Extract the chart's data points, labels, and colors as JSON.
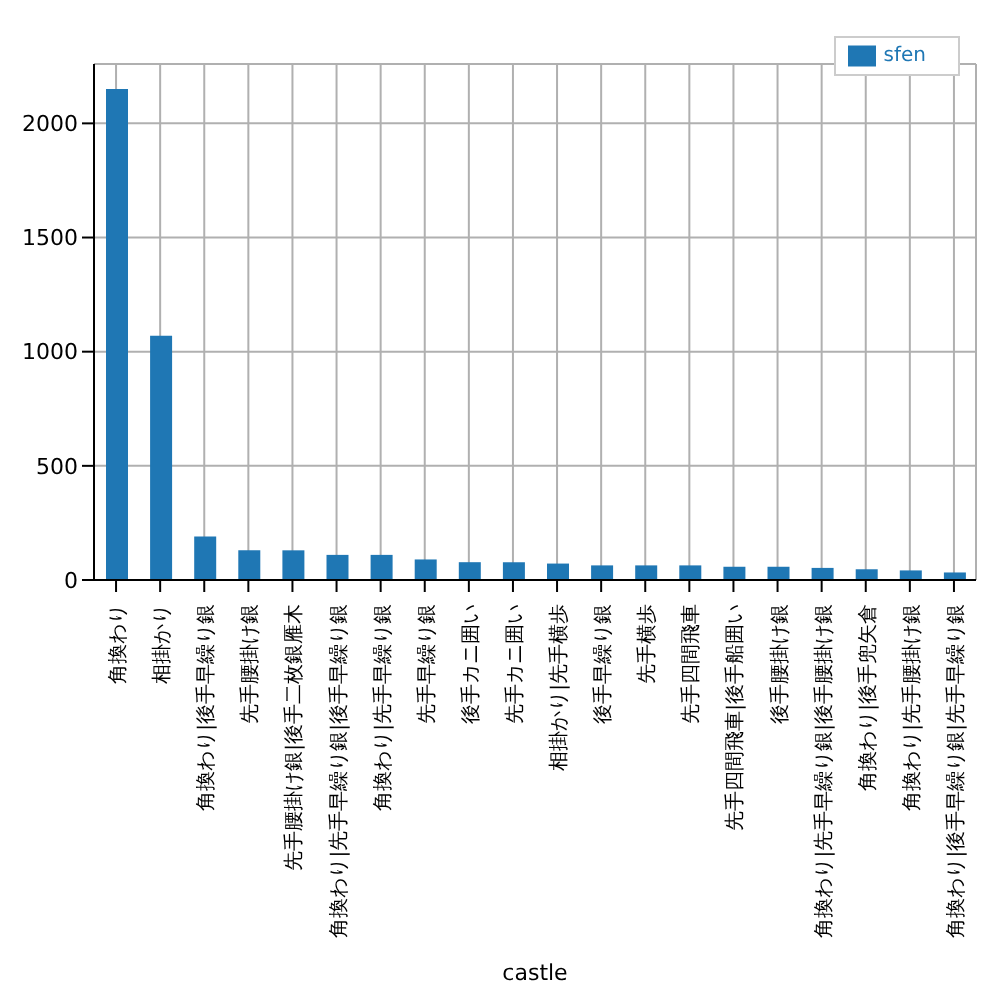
{
  "chart_data": {
    "type": "bar",
    "xlabel": "castle",
    "categories": [
      "角換わり",
      "相掛かり",
      "角換わり|後手早繰り銀",
      "先手腰掛け銀",
      "先手腰掛け銀|後手二枚銀雁木",
      "角換わり|先手早繰り銀|後手早繰り銀",
      "角換わり|先手早繰り銀",
      "先手早繰り銀",
      "後手カニ囲い",
      "先手カニ囲い",
      "相掛かり|先手横歩",
      "後手早繰り銀",
      "先手横歩",
      "先手四間飛車",
      "先手四間飛車|後手船囲い",
      "後手腰掛け銀",
      "角換わり|先手早繰り銀|後手腰掛け銀",
      "角換わり|後手兜矢倉",
      "角換わり|先手腰掛け銀",
      "角換わり|後手早繰り銀|先手早繰り銀"
    ],
    "series": [
      {
        "name": "sfen",
        "color": "#1f77b4",
        "values": [
          2150,
          1070,
          190,
          130,
          130,
          110,
          110,
          90,
          78,
          78,
          72,
          64,
          64,
          64,
          58,
          58,
          53,
          47,
          42,
          33
        ]
      }
    ],
    "ylim": [
      0,
      2260
    ],
    "yticks": [
      0,
      500,
      1000,
      1500,
      2000
    ],
    "grid": true,
    "legend": "top right"
  }
}
